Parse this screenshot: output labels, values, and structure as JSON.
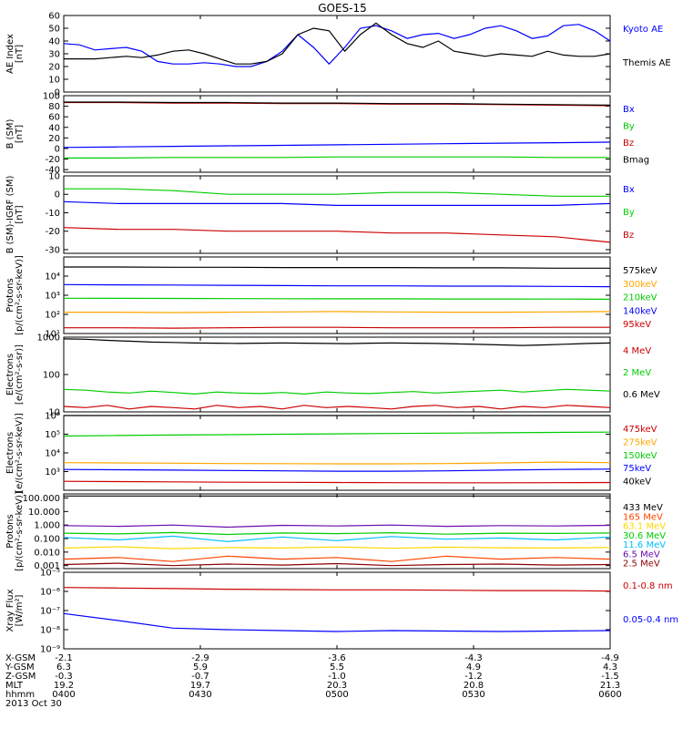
{
  "title": "GOES-15",
  "chart_data": [
    {
      "type": "line",
      "ylabel": [
        "AE Index",
        "[nT]"
      ],
      "yscale": "linear",
      "ylim": [
        0,
        60
      ],
      "yticks": [
        "60",
        "50",
        "40",
        "30",
        "20",
        "10",
        "0"
      ],
      "series": [
        {
          "name": "Kyoto AE",
          "color": "#0000ff",
          "values": [
            38,
            37,
            33,
            34,
            35,
            32,
            24,
            22,
            22,
            23,
            22,
            20,
            20,
            24,
            32,
            45,
            35,
            22,
            35,
            50,
            52,
            48,
            42,
            45,
            46,
            42,
            45,
            50,
            52,
            48,
            42,
            44,
            52,
            53,
            48,
            40
          ]
        },
        {
          "name": "Themis AE",
          "color": "#000000",
          "values": [
            26,
            26,
            26,
            27,
            28,
            27,
            29,
            32,
            33,
            30,
            26,
            22,
            22,
            24,
            30,
            45,
            50,
            48,
            32,
            45,
            54,
            45,
            38,
            35,
            40,
            32,
            30,
            28,
            30,
            29,
            28,
            32,
            29,
            28,
            28,
            30
          ]
        }
      ]
    },
    {
      "type": "line",
      "ylabel": [
        "B (SM)",
        "[nT]"
      ],
      "yscale": "linear",
      "ylim": [
        -45,
        100
      ],
      "yticks": [
        "100",
        "80",
        "60",
        "40",
        "20",
        "0",
        "-20",
        "-40"
      ],
      "series": [
        {
          "name": "Bx",
          "color": "#0000ff",
          "values": [
            2,
            3,
            4,
            5,
            6,
            7,
            8,
            9,
            10,
            11,
            12
          ]
        },
        {
          "name": "By",
          "color": "#00cc00",
          "values": [
            -18,
            -18,
            -17,
            -17,
            -17,
            -16,
            -16,
            -16,
            -16,
            -17,
            -17
          ]
        },
        {
          "name": "Bz",
          "color": "#cc0000",
          "values": [
            87,
            87,
            86,
            86,
            85,
            85,
            84,
            84,
            83,
            82,
            81
          ]
        },
        {
          "name": "Bmag",
          "color": "#000000",
          "values": [
            88,
            88,
            87,
            87,
            86,
            86,
            85,
            85,
            84,
            83,
            82
          ]
        }
      ]
    },
    {
      "type": "line",
      "ylabel": [
        "B (SM)-IGRF (SM)",
        "[nT]"
      ],
      "yscale": "linear",
      "ylim": [
        -32,
        10
      ],
      "yticks": [
        "10",
        "0",
        "-10",
        "-20",
        "-30"
      ],
      "series": [
        {
          "name": "Bx",
          "color": "#0000ff",
          "values": [
            -4,
            -5,
            -5,
            -5,
            -5,
            -6,
            -6,
            -6,
            -6,
            -6,
            -5
          ]
        },
        {
          "name": "By",
          "color": "#00cc00",
          "values": [
            3,
            3,
            2,
            0,
            0,
            0,
            1,
            1,
            0,
            -1,
            -1
          ]
        },
        {
          "name": "Bz",
          "color": "#cc0000",
          "values": [
            -18,
            -19,
            -19,
            -20,
            -20,
            -20,
            -21,
            -21,
            -22,
            -23,
            -26
          ]
        }
      ]
    },
    {
      "type": "line",
      "ylabel": [
        "Protons",
        "[p/(cm²-s-sr-keV)]"
      ],
      "yscale": "log",
      "ylim": [
        10,
        100000
      ],
      "yticks": [
        "10⁴",
        "10³",
        "10²",
        "10¹"
      ],
      "ytick_values": [
        10000,
        1000,
        100,
        10
      ],
      "series": [
        {
          "name": "575keV",
          "color": "#000000",
          "values": [
            30000,
            30000,
            29000,
            29000,
            28000,
            28000,
            28000,
            27000,
            27000,
            26000,
            26000
          ]
        },
        {
          "name": "300keV",
          "color": "#ffa500",
          "values": [
            130,
            130,
            125,
            130,
            135,
            140,
            135,
            130,
            130,
            135,
            140
          ]
        },
        {
          "name": "210keV",
          "color": "#00cc00",
          "values": [
            700,
            690,
            680,
            670,
            660,
            650,
            650,
            640,
            640,
            630,
            620
          ]
        },
        {
          "name": "140keV",
          "color": "#0000ff",
          "values": [
            3600,
            3500,
            3400,
            3300,
            3200,
            3100,
            3100,
            3000,
            3000,
            2900,
            2800
          ]
        },
        {
          "name": "95keV",
          "color": "#cc0000",
          "values": [
            20,
            20,
            19,
            20,
            21,
            21,
            20,
            20,
            20,
            21,
            21
          ]
        }
      ]
    },
    {
      "type": "line",
      "ylabel": [
        "Electrons",
        "[e/(cm²-s-sr)]"
      ],
      "yscale": "log",
      "ylim": [
        10,
        1000
      ],
      "yticks": [
        "1000",
        "100",
        "10"
      ],
      "ytick_values": [
        1000,
        100,
        10
      ],
      "series": [
        {
          "name": "4 MeV",
          "color": "#cc0000",
          "values": [
            14,
            13,
            15,
            12,
            14,
            13,
            12,
            15,
            13,
            14,
            12,
            15,
            13,
            14,
            13,
            12,
            14,
            15,
            13,
            14,
            12,
            14,
            13,
            15,
            14,
            13
          ]
        },
        {
          "name": "2 MeV",
          "color": "#00cc00",
          "values": [
            40,
            38,
            34,
            32,
            36,
            33,
            30,
            34,
            32,
            31,
            33,
            30,
            34,
            32,
            31,
            33,
            35,
            32,
            34,
            36,
            38,
            34,
            37,
            40,
            38,
            36
          ]
        },
        {
          "name": "0.6 MeV",
          "color": "#000000",
          "values": [
            900,
            880,
            820,
            780,
            740,
            720,
            700,
            690,
            680,
            690,
            700,
            690,
            680,
            670,
            690,
            700,
            690,
            680,
            660,
            640,
            620,
            600,
            620,
            650,
            680,
            700
          ]
        }
      ]
    },
    {
      "type": "line",
      "ylabel": [
        "Electrons",
        "[e/(cm²-s-sr-keV)]"
      ],
      "yscale": "log",
      "ylim": [
        100,
        1000000
      ],
      "yticks": [
        "10⁶",
        "10⁵",
        "10⁴",
        "10³"
      ],
      "ytick_values": [
        1000000,
        100000,
        10000,
        1000
      ],
      "series": [
        {
          "name": "475keV",
          "color": "#cc0000",
          "values": [
            300,
            290,
            280,
            270,
            265,
            260,
            255,
            250,
            250,
            255,
            260
          ]
        },
        {
          "name": "275keV",
          "color": "#ffa500",
          "values": [
            3000,
            2900,
            2800,
            2700,
            2650,
            2600,
            2600,
            2700,
            2900,
            3200,
            3000
          ]
        },
        {
          "name": "150keV",
          "color": "#00cc00",
          "values": [
            80000,
            85000,
            90000,
            95000,
            100000,
            105000,
            110000,
            115000,
            120000,
            125000,
            130000
          ]
        },
        {
          "name": "75keV",
          "color": "#0000ff",
          "values": [
            1300,
            1250,
            1200,
            1150,
            1100,
            1050,
            1050,
            1100,
            1200,
            1300,
            1350
          ]
        },
        {
          "name": "40keV",
          "color": "#000000",
          "values": [
            1000000,
            1000000,
            1000000,
            1000000,
            1000000,
            1000000,
            1000000,
            1000000,
            1000000,
            1000000,
            1000000
          ]
        }
      ]
    },
    {
      "type": "line",
      "ylabel": [
        "Protons",
        "[p/(cm²-s-sr-keV)]"
      ],
      "yscale": "log",
      "ylim": [
        0.0006,
        200
      ],
      "yticks": [
        "100.000",
        "10.000",
        "1.000",
        "0.100",
        "0.010",
        "0.001"
      ],
      "ytick_values": [
        100,
        10,
        1,
        0.1,
        0.01,
        0.001
      ],
      "series": [
        {
          "name": "433 MeV",
          "color": "#000000",
          "values": [
            140,
            140,
            140,
            140,
            140,
            140,
            140,
            140,
            140,
            140,
            140
          ]
        },
        {
          "name": "165 MeV",
          "color": "#ff4500",
          "values": [
            0.003,
            0.004,
            0.002,
            0.005,
            0.003,
            0.004,
            0.002,
            0.005,
            0.003,
            0.004,
            0.003
          ]
        },
        {
          "name": "63.1 MeV",
          "color": "#ffd700",
          "values": [
            0.02,
            0.025,
            0.018,
            0.022,
            0.02,
            0.024,
            0.019,
            0.023,
            0.021,
            0.02,
            0.022
          ]
        },
        {
          "name": "30.6 MeV",
          "color": "#00cc00",
          "values": [
            0.25,
            0.22,
            0.28,
            0.2,
            0.26,
            0.23,
            0.27,
            0.21,
            0.25,
            0.24,
            0.26
          ]
        },
        {
          "name": "11.6 MeV",
          "color": "#00bfff",
          "values": [
            0.12,
            0.08,
            0.15,
            0.06,
            0.13,
            0.07,
            0.14,
            0.09,
            0.11,
            0.08,
            0.13
          ]
        },
        {
          "name": "6.5 MeV",
          "color": "#6a0dad",
          "values": [
            0.9,
            0.8,
            1.0,
            0.7,
            0.95,
            0.85,
            1.0,
            0.8,
            0.9,
            0.85,
            0.95
          ]
        },
        {
          "name": "2.5 MeV",
          "color": "#8b0000",
          "values": [
            0.0012,
            0.0015,
            0.001,
            0.0013,
            0.0011,
            0.0014,
            0.001,
            0.0012,
            0.0013,
            0.0011,
            0.0012
          ]
        }
      ]
    },
    {
      "type": "line",
      "ylabel": [
        "Xray Flux",
        "[W/m²]"
      ],
      "yscale": "log",
      "ylim": [
        1e-09,
        1e-05
      ],
      "yticks": [
        "10⁻⁵",
        "10⁻⁶",
        "10⁻⁷",
        "10⁻⁸",
        "10⁻⁹"
      ],
      "ytick_values": [
        1e-05,
        1e-06,
        1e-07,
        1e-08,
        1e-09
      ],
      "series": [
        {
          "name": "0.1-0.8 nm",
          "color": "#cc0000",
          "values": [
            1.6e-06,
            1.5e-06,
            1.4e-06,
            1.3e-06,
            1.25e-06,
            1.2e-06,
            1.2e-06,
            1.15e-06,
            1.1e-06,
            1.1e-06,
            1.05e-06
          ]
        },
        {
          "name": "0.05-0.4 nm",
          "color": "#0000ff",
          "values": [
            7e-08,
            3e-08,
            1.2e-08,
            1e-08,
            9e-09,
            8e-09,
            9e-09,
            8.5e-09,
            8e-09,
            8.5e-09,
            9e-09
          ]
        }
      ]
    }
  ],
  "xaxis": {
    "ticks": [
      {
        "XGSM": "-2.1",
        "YGSM": "6.3",
        "ZGSM": "-0.3",
        "MLT": "19.2",
        "hhmm": "0400"
      },
      {
        "XGSM": "-2.9",
        "YGSM": "5.9",
        "ZGSM": "-0.7",
        "MLT": "19.7",
        "hhmm": "0430"
      },
      {
        "XGSM": "-3.6",
        "YGSM": "5.5",
        "ZGSM": "-1.0",
        "MLT": "20.3",
        "hhmm": "0500"
      },
      {
        "XGSM": "-4.3",
        "YGSM": "4.9",
        "ZGSM": "-1.2",
        "MLT": "20.8",
        "hhmm": "0530"
      },
      {
        "XGSM": "-4.9",
        "YGSM": "4.3",
        "ZGSM": "-1.5",
        "MLT": "21.3",
        "hhmm": "0600"
      }
    ],
    "row_labels": [
      "X-GSM",
      "Y-GSM",
      "Z-GSM",
      "MLT",
      "hhmm"
    ],
    "date": "2013 Oct 30"
  }
}
